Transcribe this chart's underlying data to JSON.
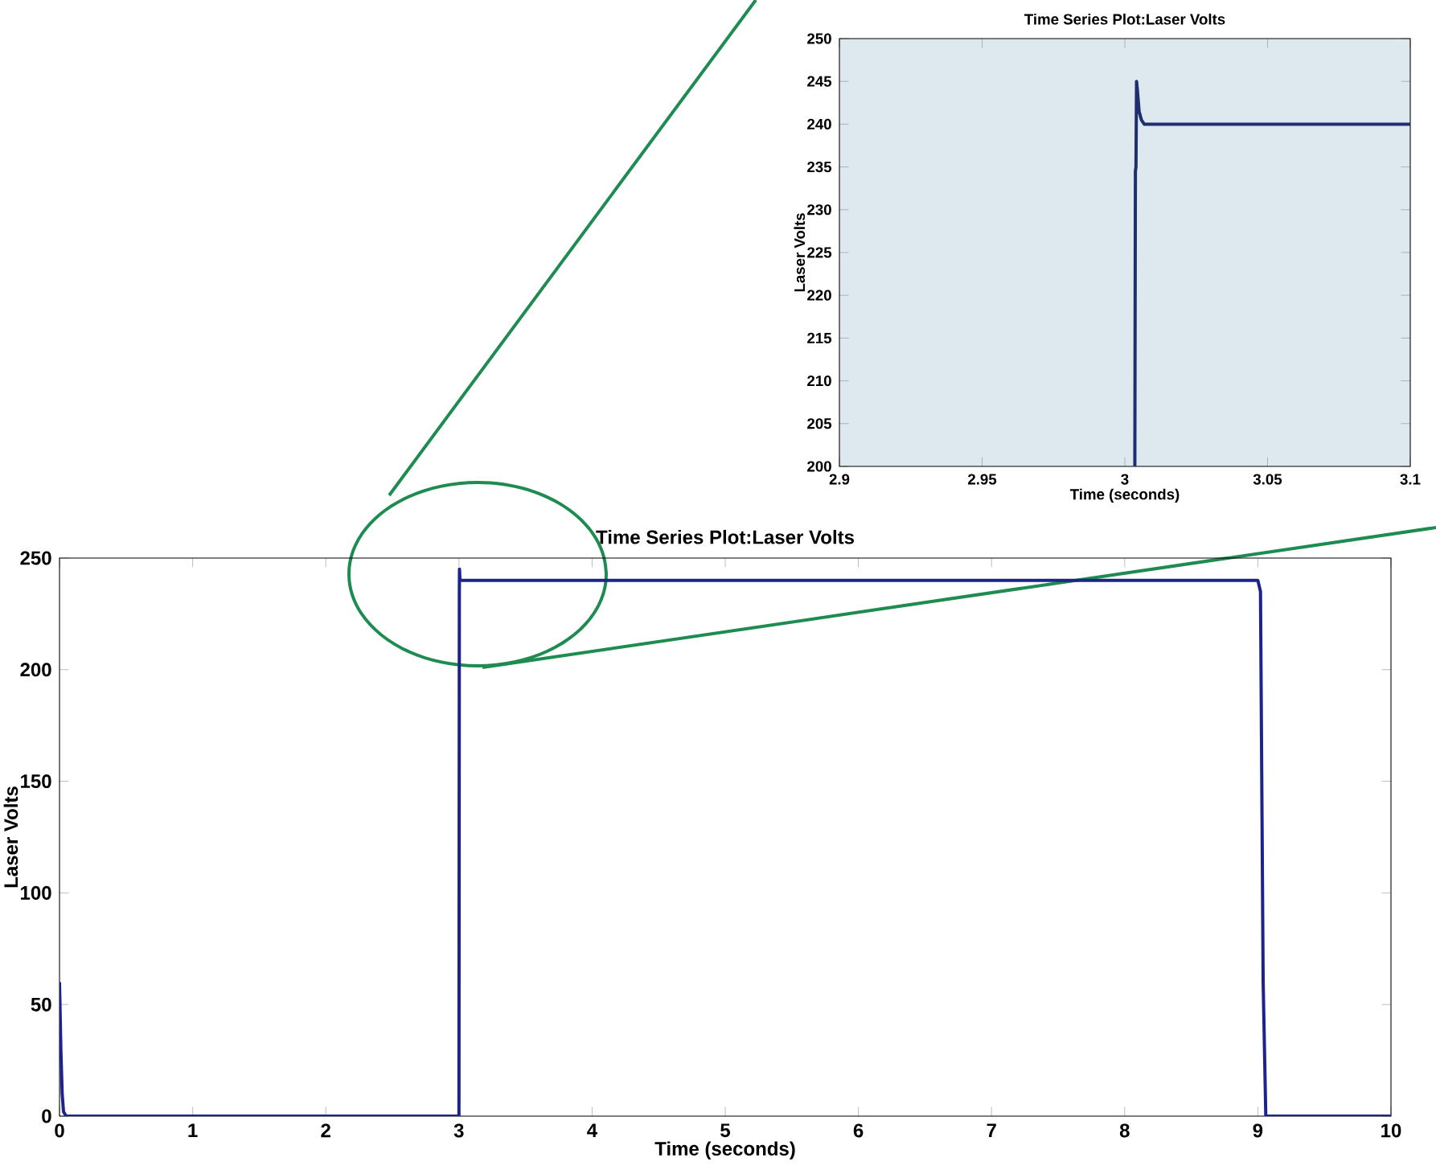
{
  "chart_data": [
    {
      "type": "line",
      "title": "Time Series Plot:Laser Volts",
      "xlabel": "Time (seconds)",
      "ylabel": "Laser Volts",
      "x": [
        0,
        0.01,
        0.02,
        0.03,
        0.05,
        3,
        3.003,
        3.004,
        3.008,
        9,
        9.02,
        9.04,
        9.06,
        10
      ],
      "values": [
        60,
        30,
        10,
        2,
        0,
        0,
        235,
        245,
        240,
        240,
        235,
        60,
        0,
        0
      ],
      "color": "#1c238c",
      "xlim": [
        0,
        10
      ],
      "ylim": [
        0,
        250
      ],
      "xticks": [
        0,
        1,
        2,
        3,
        4,
        5,
        6,
        7,
        8,
        9,
        10
      ],
      "yticks": [
        0,
        50,
        100,
        150,
        200,
        250
      ],
      "line_style": "solid"
    },
    {
      "type": "line",
      "title": "Time Series Plot:Laser Volts",
      "xlabel": "Time (seconds)",
      "ylabel": "Laser Volts",
      "x": [
        3.0035,
        3.0037,
        3.0039,
        3.0041,
        3.0044,
        3.005,
        3.0058,
        3.0068,
        3.1
      ],
      "values": [
        200,
        234.5,
        235,
        245,
        244,
        241.5,
        240.5,
        240,
        240
      ],
      "color": "#1f2f6e",
      "xlim": [
        2.9,
        3.1
      ],
      "ylim": [
        200,
        250
      ],
      "xticks": [
        2.9,
        2.95,
        3,
        3.05,
        3.1
      ],
      "yticks": [
        200,
        205,
        210,
        215,
        220,
        225,
        230,
        235,
        240,
        245,
        250
      ],
      "line_style": "solid"
    }
  ]
}
